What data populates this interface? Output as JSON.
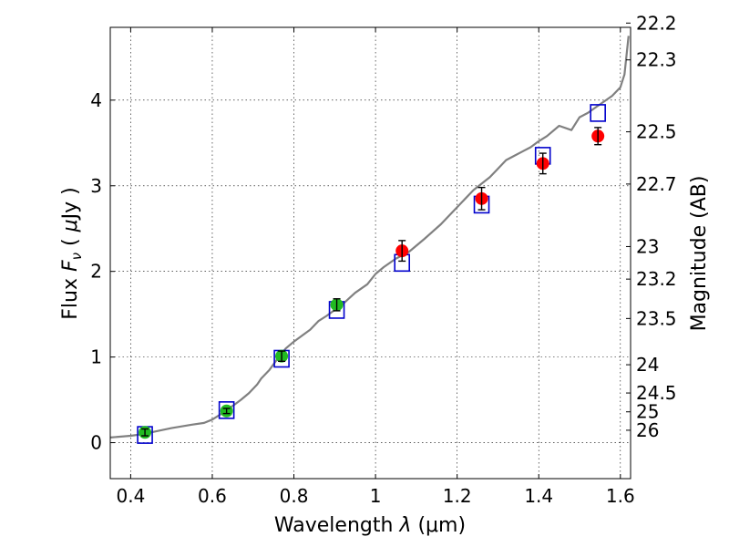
{
  "chart_data": {
    "type": "scatter",
    "title": "",
    "xlabel_text": "Wavelength",
    "xlabel_symbol": "λ",
    "xlabel_unit": "(μm)",
    "ylabel_text": "Flux",
    "ylabel_symbol": "F",
    "ylabel_subscript": "ν",
    "ylabel_unit_open": "(",
    "ylabel_unit_mu": "μ",
    "ylabel_unit_rest": "Jy",
    "ylabel_unit_close": ")",
    "y2label": "Magnitude (AB)",
    "xlim": [
      0.35,
      1.625
    ],
    "ylim": [
      -0.42,
      4.85
    ],
    "grid": true,
    "xticks": [
      {
        "value": 0.4,
        "label": "0.4"
      },
      {
        "value": 0.6,
        "label": "0.6"
      },
      {
        "value": 0.8,
        "label": "0.8"
      },
      {
        "value": 1.0,
        "label": "1"
      },
      {
        "value": 1.2,
        "label": "1.2"
      },
      {
        "value": 1.4,
        "label": "1.4"
      },
      {
        "value": 1.6,
        "label": "1.6"
      }
    ],
    "yticks": [
      {
        "value": 0,
        "label": "0"
      },
      {
        "value": 1,
        "label": "1"
      },
      {
        "value": 2,
        "label": "2"
      },
      {
        "value": 3,
        "label": "3"
      },
      {
        "value": 4,
        "label": "4"
      }
    ],
    "y2ticks": [
      {
        "label": "22.2",
        "flux": 4.9
      },
      {
        "label": "22.3",
        "flux": 4.47
      },
      {
        "label": "22.5",
        "flux": 3.63
      },
      {
        "label": "22.7",
        "flux": 3.02
      },
      {
        "label": "23",
        "flux": 2.29
      },
      {
        "label": "23.2",
        "flux": 1.91
      },
      {
        "label": "23.5",
        "flux": 1.45
      },
      {
        "label": "24",
        "flux": 0.91
      },
      {
        "label": "24.5",
        "flux": 0.58
      },
      {
        "label": "25",
        "flux": 0.36
      },
      {
        "label": "26",
        "flux": 0.145
      }
    ],
    "series": [
      {
        "name": "model_spectrum",
        "kind": "line",
        "color": "#808080",
        "x": [
          0.35,
          0.4,
          0.43,
          0.46,
          0.5,
          0.55,
          0.58,
          0.6,
          0.62,
          0.63,
          0.65,
          0.67,
          0.69,
          0.71,
          0.72,
          0.74,
          0.76,
          0.78,
          0.8,
          0.82,
          0.84,
          0.86,
          0.88,
          0.9,
          0.92,
          0.95,
          0.98,
          1.0,
          1.02,
          1.05,
          1.08,
          1.12,
          1.16,
          1.2,
          1.24,
          1.28,
          1.3,
          1.32,
          1.34,
          1.36,
          1.38,
          1.4,
          1.42,
          1.45,
          1.48,
          1.5,
          1.52,
          1.55,
          1.58,
          1.6,
          1.61,
          1.62
        ],
        "y": [
          0.06,
          0.08,
          0.1,
          0.13,
          0.17,
          0.21,
          0.23,
          0.27,
          0.33,
          0.38,
          0.43,
          0.5,
          0.58,
          0.68,
          0.75,
          0.85,
          0.98,
          1.1,
          1.18,
          1.25,
          1.32,
          1.42,
          1.48,
          1.55,
          1.62,
          1.75,
          1.85,
          1.97,
          2.05,
          2.15,
          2.22,
          2.38,
          2.55,
          2.75,
          2.95,
          3.1,
          3.2,
          3.3,
          3.35,
          3.4,
          3.45,
          3.52,
          3.58,
          3.7,
          3.65,
          3.8,
          3.85,
          3.95,
          4.05,
          4.15,
          4.3,
          4.75
        ]
      },
      {
        "name": "model_boxes",
        "kind": "square",
        "color": "#0000cc",
        "x": [
          0.435,
          0.635,
          0.77,
          0.905,
          1.065,
          1.26,
          1.41,
          1.545
        ],
        "y": [
          0.09,
          0.38,
          0.98,
          1.55,
          2.1,
          2.78,
          3.35,
          3.85
        ]
      },
      {
        "name": "photometry_optical",
        "kind": "point",
        "color": "#22bb22",
        "x": [
          0.435,
          0.635,
          0.77,
          0.905
        ],
        "y": [
          0.12,
          0.37,
          1.01,
          1.61
        ],
        "yerr": [
          0.04,
          0.03,
          0.06,
          0.07
        ]
      },
      {
        "name": "photometry_nir",
        "kind": "point",
        "color": "#ff0000",
        "x": [
          1.065,
          1.26,
          1.41,
          1.545
        ],
        "y": [
          2.24,
          2.85,
          3.26,
          3.58
        ],
        "yerr": [
          0.12,
          0.13,
          0.12,
          0.1
        ]
      }
    ]
  }
}
